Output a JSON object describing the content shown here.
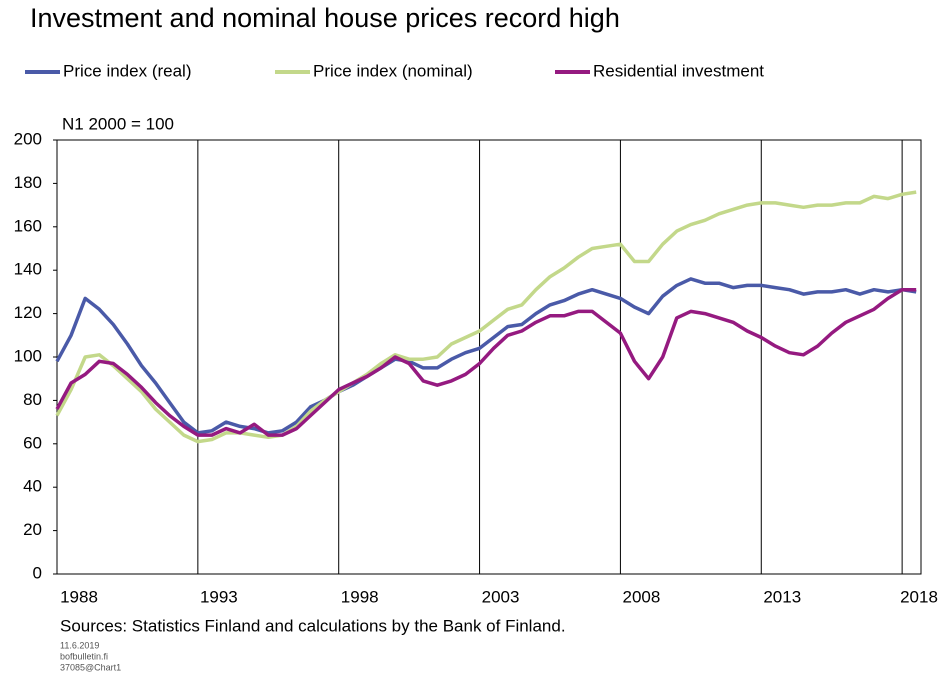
{
  "chart_data": {
    "type": "line",
    "title": "Investment and nominal house prices record high",
    "unit_note": "N1 2000 = 100",
    "source": "Sources: Statistics Finland and calculations by the Bank of Finland.",
    "footnotes": [
      "11.6.2019",
      "bofbulletin.fi",
      "37085@Chart1"
    ],
    "x": [
      1988,
      1988.5,
      1989,
      1989.5,
      1990,
      1990.5,
      1991,
      1991.5,
      1992,
      1992.5,
      1993,
      1993.5,
      1994,
      1994.5,
      1995,
      1995.5,
      1996,
      1996.5,
      1997,
      1997.5,
      1998,
      1998.5,
      1999,
      1999.5,
      2000,
      2000.5,
      2001,
      2001.5,
      2002,
      2002.5,
      2003,
      2003.5,
      2004,
      2004.5,
      2005,
      2005.5,
      2006,
      2006.5,
      2007,
      2007.5,
      2008,
      2008.5,
      2009,
      2009.5,
      2010,
      2010.5,
      2011,
      2011.5,
      2012,
      2012.5,
      2013,
      2013.5,
      2014,
      2014.5,
      2015,
      2015.5,
      2016,
      2016.5,
      2017,
      2017.5,
      2018,
      2018.5
    ],
    "series": [
      {
        "name": "Price index (real)",
        "color": "#4a5aa8",
        "values": [
          98,
          110,
          127,
          122,
          115,
          106,
          96,
          88,
          79,
          70,
          65,
          66,
          70,
          68,
          67,
          65,
          66,
          70,
          77,
          80,
          84,
          87,
          91,
          95,
          99,
          98,
          95,
          95,
          99,
          102,
          104,
          109,
          114,
          115,
          120,
          124,
          126,
          129,
          131,
          129,
          127,
          123,
          120,
          128,
          133,
          136,
          134,
          134,
          132,
          133,
          133,
          132,
          131,
          129,
          130,
          130,
          131,
          129,
          131,
          130,
          131,
          130
        ]
      },
      {
        "name": "Price index (nominal)",
        "color": "#c3d88a",
        "values": [
          73,
          85,
          100,
          101,
          96,
          90,
          84,
          76,
          70,
          64,
          61,
          62,
          65,
          65,
          64,
          63,
          64,
          68,
          75,
          80,
          84,
          88,
          92,
          97,
          101,
          99,
          99,
          100,
          106,
          109,
          112,
          117,
          122,
          124,
          131,
          137,
          141,
          146,
          150,
          151,
          152,
          144,
          144,
          152,
          158,
          161,
          163,
          166,
          168,
          170,
          171,
          171,
          170,
          169,
          170,
          170,
          171,
          171,
          174,
          173,
          175,
          176
        ]
      },
      {
        "name": "Residential investment",
        "color": "#951a80",
        "values": [
          76,
          88,
          92,
          98,
          97,
          92,
          86,
          79,
          73,
          68,
          64,
          64,
          67,
          65,
          69,
          64,
          64,
          67,
          73,
          79,
          85,
          88,
          91,
          95,
          100,
          97,
          89,
          87,
          89,
          92,
          97,
          104,
          110,
          112,
          116,
          119,
          119,
          121,
          121,
          116,
          111,
          98,
          90,
          100,
          118,
          121,
          120,
          118,
          116,
          112,
          109,
          105,
          102,
          101,
          105,
          111,
          116,
          119,
          122,
          127,
          131,
          131
        ]
      }
    ],
    "xlim": [
      1988,
      2018.67
    ],
    "xticks": [
      1988,
      1993,
      1998,
      2003,
      2008,
      2013,
      2018
    ],
    "ylim": [
      0,
      200
    ],
    "yticks": [
      0,
      20,
      40,
      60,
      80,
      100,
      120,
      140,
      160,
      180,
      200
    ],
    "grid": "x"
  }
}
